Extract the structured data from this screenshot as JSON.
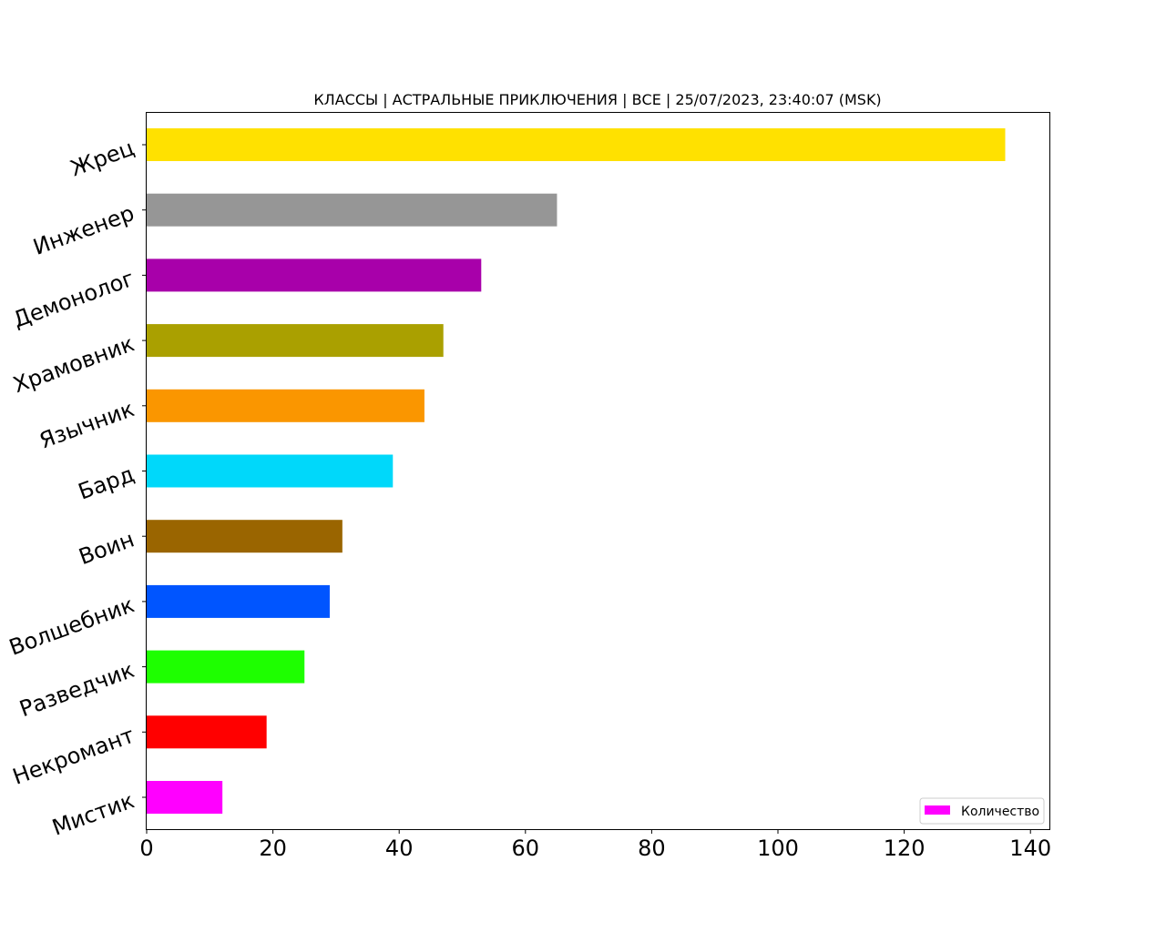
{
  "chart_data": {
    "type": "bar",
    "orientation": "horizontal",
    "title": "КЛАССЫ | АСТРАЛЬНЫЕ ПРИКЛЮЧЕНИЯ | ВСЕ | 25/07/2023, 23:40:07 (MSK)",
    "xlabel": "",
    "ylabel": "",
    "xlim": [
      0,
      143
    ],
    "xticks": [
      0,
      20,
      40,
      60,
      80,
      100,
      120,
      140
    ],
    "grid": false,
    "legend": {
      "position": "lower-right",
      "entries": [
        "Количество"
      ]
    },
    "series": [
      {
        "name": "Количество",
        "bars": [
          {
            "category": "Жрец",
            "value": 136,
            "color": "#FFE100"
          },
          {
            "category": "Инженер",
            "value": 65,
            "color": "#969696"
          },
          {
            "category": "Демонолог",
            "value": 53,
            "color": "#A800AA"
          },
          {
            "category": "Храмовник",
            "value": 47,
            "color": "#AAA000"
          },
          {
            "category": "Язычник",
            "value": 44,
            "color": "#FA9600"
          },
          {
            "category": "Бард",
            "value": 39,
            "color": "#00D8FA"
          },
          {
            "category": "Воин",
            "value": 31,
            "color": "#9A6500"
          },
          {
            "category": "Волшебник",
            "value": 29,
            "color": "#0055FF"
          },
          {
            "category": "Разведчик",
            "value": 25,
            "color": "#1EFF00"
          },
          {
            "category": "Некромант",
            "value": 19,
            "color": "#FF0000"
          },
          {
            "category": "Мистик",
            "value": 12,
            "color": "#FF00FF"
          }
        ]
      }
    ]
  }
}
